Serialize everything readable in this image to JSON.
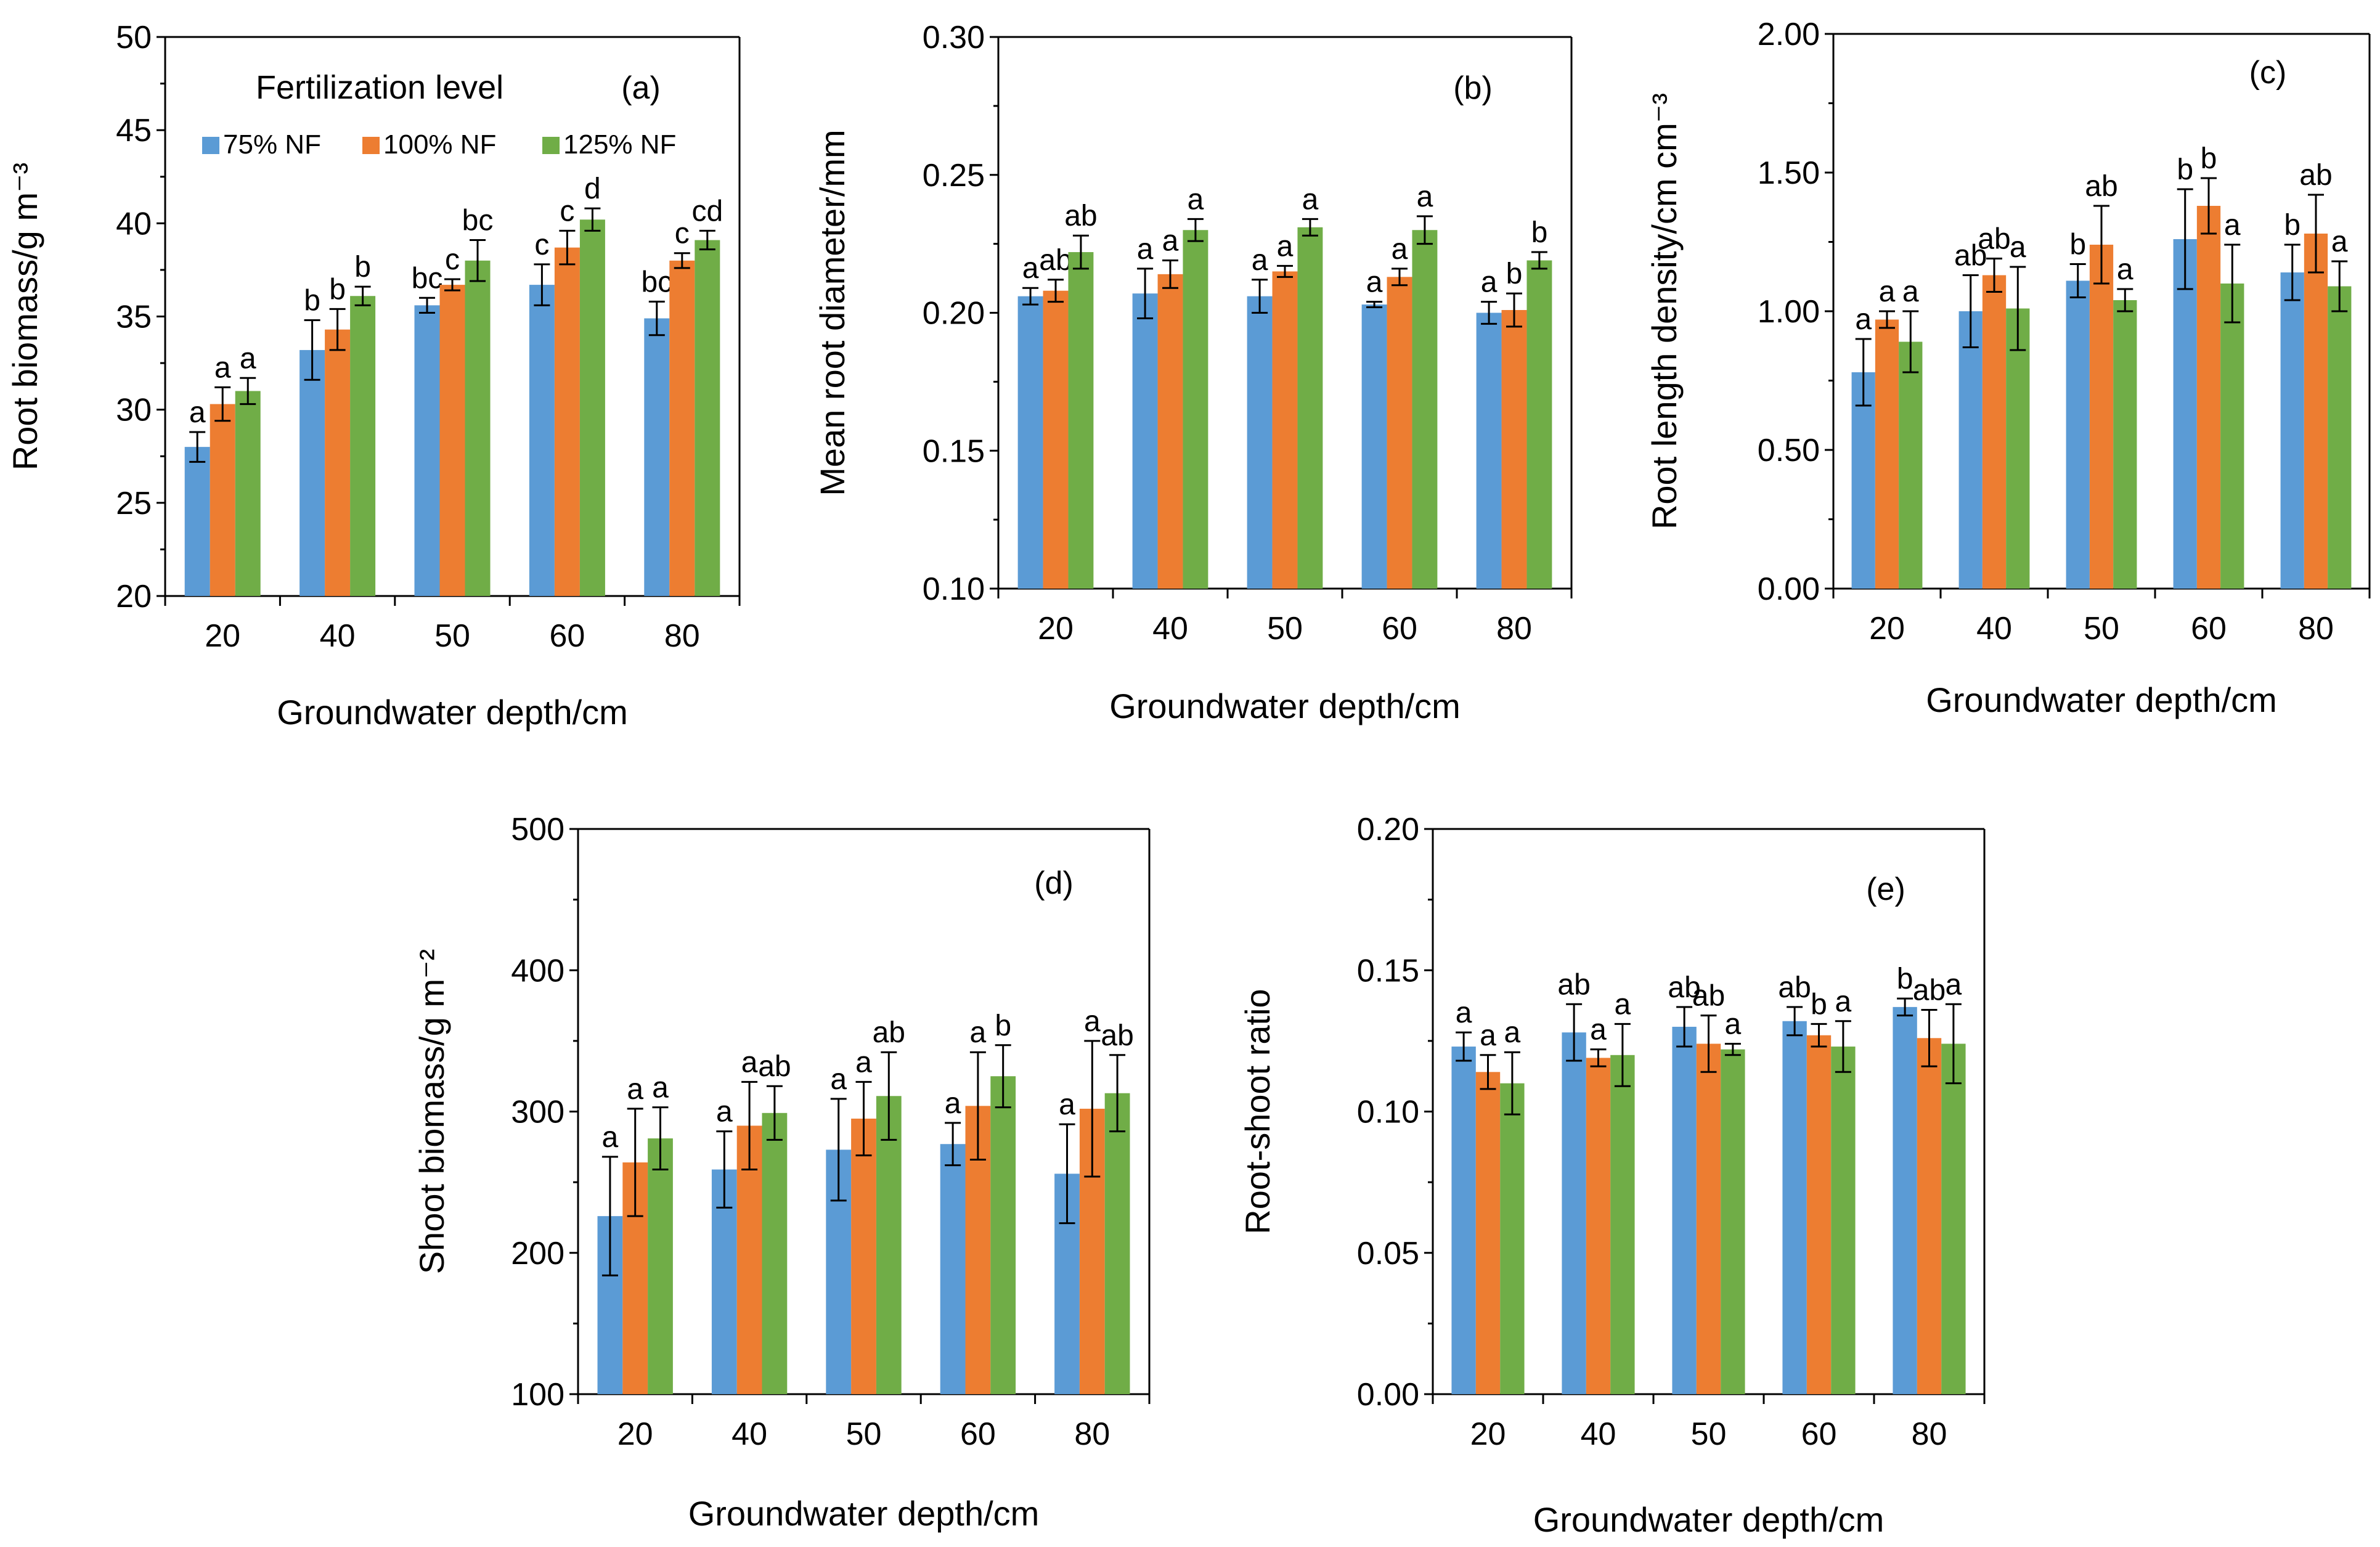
{
  "figure": {
    "legend": {
      "title": "Fertilization level",
      "entries": [
        "75% NF",
        "100% NF",
        "125% NF"
      ]
    }
  },
  "colors": {
    "series": [
      "#5B9BD5",
      "#ED7D31",
      "#70AD47"
    ],
    "axis": "#000000"
  },
  "chart_data": [
    {
      "type": "bar",
      "panel_label": "(a)",
      "categories": [
        "20",
        "40",
        "50",
        "60",
        "80"
      ],
      "xlabel": "Groundwater depth/cm",
      "ylabel": "Root biomass/g m⁻³",
      "ylim": [
        20,
        50
      ],
      "yticks": [
        "20",
        "25",
        "30",
        "35",
        "40",
        "45",
        "50"
      ],
      "legend_position": "top-left",
      "series": [
        {
          "name": "75% NF",
          "values": [
            28.0,
            33.2,
            35.6,
            36.7,
            34.9
          ],
          "errors": [
            0.8,
            1.6,
            0.4,
            1.1,
            0.9
          ],
          "letters": [
            "a",
            "b",
            "bc",
            "c",
            "bc"
          ]
        },
        {
          "name": "100% NF",
          "values": [
            30.3,
            34.3,
            36.7,
            38.7,
            38.0
          ],
          "errors": [
            0.9,
            1.1,
            0.3,
            0.9,
            0.4
          ],
          "letters": [
            "a",
            "b",
            "c",
            "c",
            "c"
          ]
        },
        {
          "name": "125% NF",
          "values": [
            31.0,
            36.1,
            38.0,
            40.2,
            39.1
          ],
          "errors": [
            0.7,
            0.5,
            1.1,
            0.6,
            0.5
          ],
          "letters": [
            "a",
            "b",
            "bc",
            "d",
            "cd"
          ]
        }
      ]
    },
    {
      "type": "bar",
      "panel_label": "(b)",
      "categories": [
        "20",
        "40",
        "50",
        "60",
        "80"
      ],
      "xlabel": "Groundwater depth/cm",
      "ylabel": "Mean root diameter/mm",
      "ylim": [
        0.1,
        0.3
      ],
      "yticks": [
        "0.10",
        "0.15",
        "0.20",
        "0.25",
        "0.30"
      ],
      "series": [
        {
          "name": "75% NF",
          "values": [
            0.206,
            0.207,
            0.206,
            0.203,
            0.2
          ],
          "errors": [
            0.003,
            0.009,
            0.006,
            0.001,
            0.004
          ],
          "letters": [
            "a",
            "a",
            "a",
            "a",
            "a"
          ]
        },
        {
          "name": "100% NF",
          "values": [
            0.208,
            0.214,
            0.215,
            0.213,
            0.201
          ],
          "errors": [
            0.004,
            0.005,
            0.002,
            0.003,
            0.006
          ],
          "letters": [
            "ab",
            "a",
            "a",
            "a",
            "b"
          ]
        },
        {
          "name": "125% NF",
          "values": [
            0.222,
            0.23,
            0.231,
            0.23,
            0.219
          ],
          "errors": [
            0.006,
            0.004,
            0.003,
            0.005,
            0.003
          ],
          "letters": [
            "ab",
            "a",
            "a",
            "a",
            "b"
          ]
        }
      ]
    },
    {
      "type": "bar",
      "panel_label": "(c)",
      "categories": [
        "20",
        "40",
        "50",
        "60",
        "80"
      ],
      "xlabel": "Groundwater depth/cm",
      "ylabel": "Root length density/cm cm⁻³",
      "ylim": [
        0,
        2
      ],
      "yticks": [
        "0.00",
        "0.50",
        "1.00",
        "1.50",
        "2.00"
      ],
      "series": [
        {
          "name": "75% NF",
          "values": [
            0.78,
            1.0,
            1.11,
            1.26,
            1.14
          ],
          "errors": [
            0.12,
            0.13,
            0.06,
            0.18,
            0.1
          ],
          "letters": [
            "a",
            "ab",
            "b",
            "b",
            "b"
          ]
        },
        {
          "name": "100% NF",
          "values": [
            0.97,
            1.13,
            1.24,
            1.38,
            1.28
          ],
          "errors": [
            0.03,
            0.06,
            0.14,
            0.1,
            0.14
          ],
          "letters": [
            "a",
            "ab",
            "ab",
            "b",
            "ab"
          ]
        },
        {
          "name": "125% NF",
          "values": [
            0.89,
            1.01,
            1.04,
            1.1,
            1.09
          ],
          "errors": [
            0.11,
            0.15,
            0.04,
            0.14,
            0.09
          ],
          "letters": [
            "a",
            "a",
            "a",
            "a",
            "a"
          ]
        }
      ]
    },
    {
      "type": "bar",
      "panel_label": "(d)",
      "categories": [
        "20",
        "40",
        "50",
        "60",
        "80"
      ],
      "xlabel": "Groundwater depth/cm",
      "ylabel": "Shoot biomass/g m⁻²",
      "ylim": [
        100,
        500
      ],
      "yticks": [
        "100",
        "200",
        "300",
        "400",
        "500"
      ],
      "series": [
        {
          "name": "75% NF",
          "values": [
            226,
            259,
            273,
            277,
            256
          ],
          "errors": [
            42,
            27,
            36,
            15,
            35
          ],
          "letters": [
            "a",
            "a",
            "a",
            "a",
            "a"
          ]
        },
        {
          "name": "100% NF",
          "values": [
            264,
            290,
            295,
            304,
            302
          ],
          "errors": [
            38,
            31,
            26,
            38,
            48
          ],
          "letters": [
            "a",
            "a",
            "a",
            "a",
            "a"
          ]
        },
        {
          "name": "125% NF",
          "values": [
            281,
            299,
            311,
            325,
            313
          ],
          "errors": [
            22,
            19,
            31,
            22,
            27
          ],
          "letters": [
            "a",
            "ab",
            "ab",
            "b",
            "ab"
          ]
        }
      ]
    },
    {
      "type": "bar",
      "panel_label": "(e)",
      "categories": [
        "20",
        "40",
        "50",
        "60",
        "80"
      ],
      "xlabel": "Groundwater depth/cm",
      "ylabel": "Root-shoot ratio",
      "ylim": [
        0,
        0.2
      ],
      "yticks": [
        "0.00",
        "0.05",
        "0.10",
        "0.15",
        "0.20"
      ],
      "series": [
        {
          "name": "75% NF",
          "values": [
            0.123,
            0.128,
            0.13,
            0.132,
            0.137
          ],
          "errors": [
            0.005,
            0.01,
            0.007,
            0.005,
            0.003
          ],
          "letters": [
            "a",
            "ab",
            "ab",
            "ab",
            "b"
          ]
        },
        {
          "name": "100% NF",
          "values": [
            0.114,
            0.119,
            0.124,
            0.127,
            0.126
          ],
          "errors": [
            0.006,
            0.003,
            0.01,
            0.004,
            0.01
          ],
          "letters": [
            "a",
            "a",
            "ab",
            "b",
            "ab"
          ]
        },
        {
          "name": "125% NF",
          "values": [
            0.11,
            0.12,
            0.122,
            0.123,
            0.124
          ],
          "errors": [
            0.011,
            0.011,
            0.002,
            0.009,
            0.014
          ],
          "letters": [
            "a",
            "a",
            "a",
            "a",
            "a"
          ]
        }
      ]
    }
  ]
}
